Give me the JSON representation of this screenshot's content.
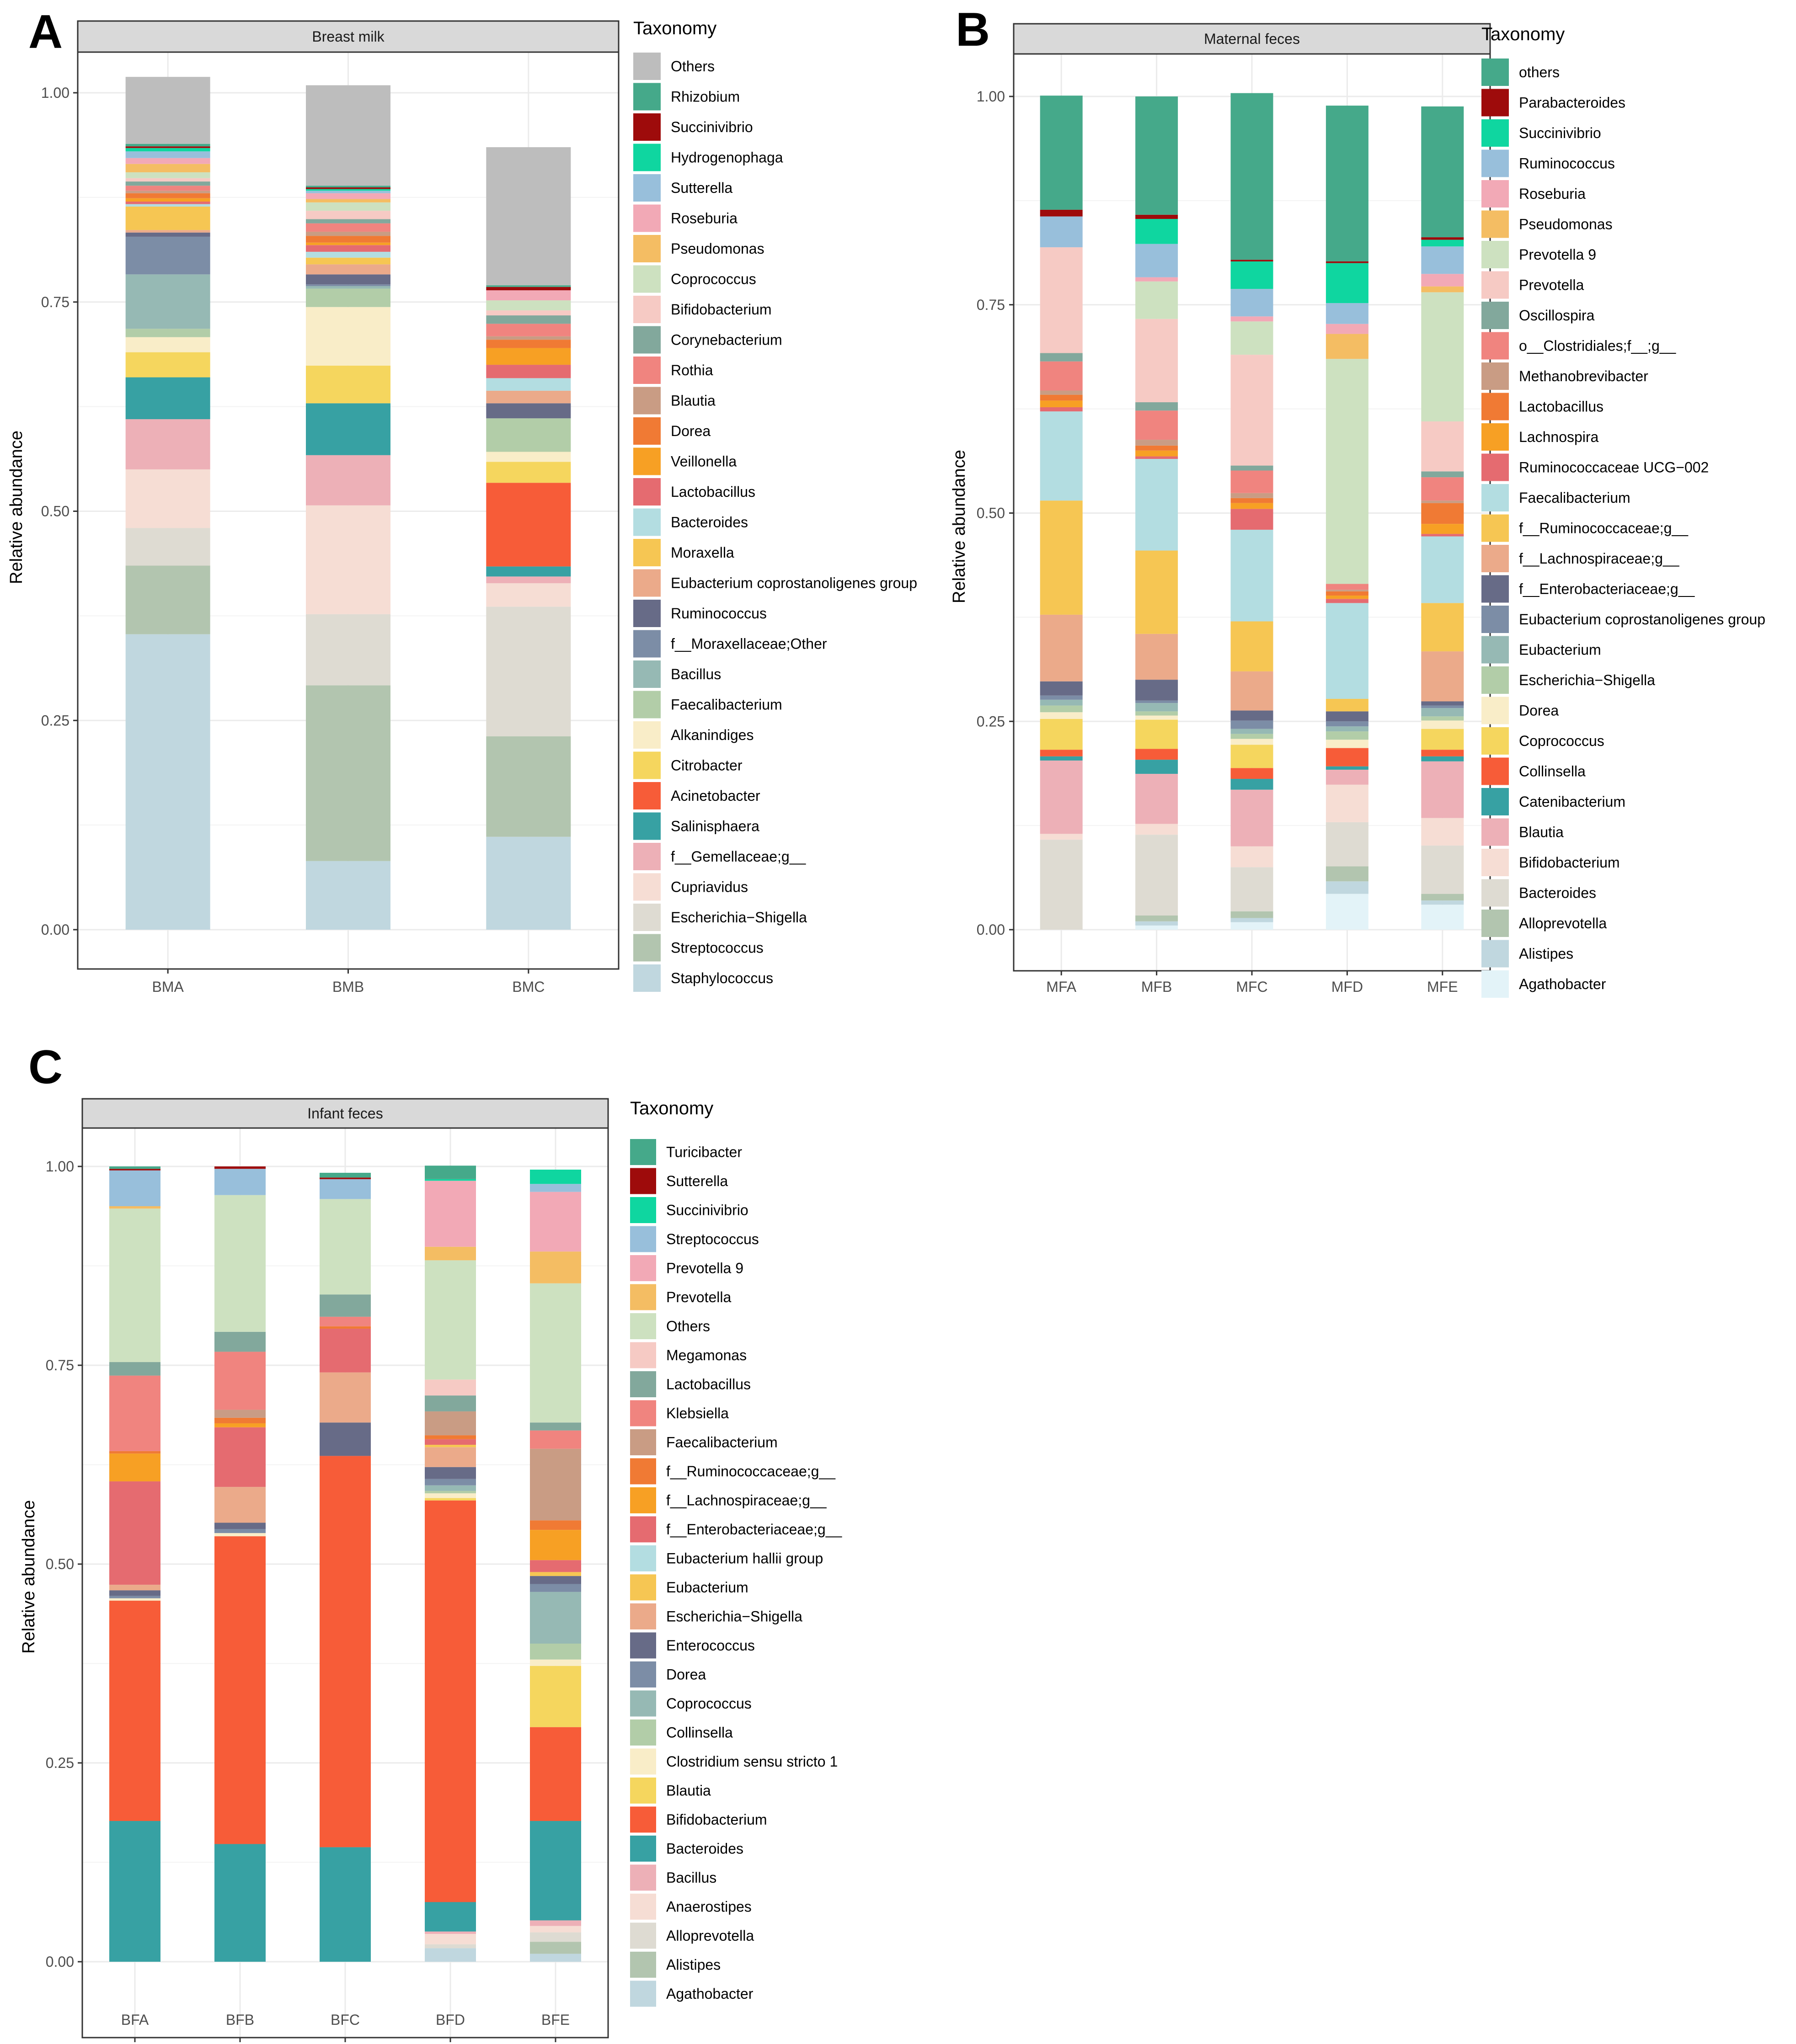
{
  "panels": [
    {
      "letter": "A",
      "strip_title": "Breast milk",
      "ylabel": "Relative abundance",
      "ylim": [
        0,
        1
      ],
      "y_ticks": [
        "0.00",
        "0.25",
        "0.50",
        "0.75",
        "1.00"
      ],
      "legend_title": "Taxonomy",
      "samples": [
        "BMA",
        "BMB",
        "BMC"
      ],
      "taxa": [
        {
          "name": "Others",
          "color": "#BDBDBD"
        },
        {
          "name": "Rhizobium",
          "color": "#45A98A"
        },
        {
          "name": "Succinivibrio",
          "color": "#9E0B0B"
        },
        {
          "name": "Hydrogenophaga",
          "color": "#0FD6A0"
        },
        {
          "name": "Sutterella",
          "color": "#98BFDB"
        },
        {
          "name": "Roseburia",
          "color": "#F2A9B6"
        },
        {
          "name": "Pseudomonas",
          "color": "#F4BD63"
        },
        {
          "name": "Coprococcus",
          "color": "#CDE1C0"
        },
        {
          "name": "Bifidobacterium",
          "color": "#F6CAC4"
        },
        {
          "name": "Corynebacterium",
          "color": "#82A89C"
        },
        {
          "name": "Rothia",
          "color": "#F0847F"
        },
        {
          "name": "Blautia",
          "color": "#C99C84"
        },
        {
          "name": "Dorea",
          "color": "#F07A34"
        },
        {
          "name": "Veillonella",
          "color": "#F7A024"
        },
        {
          "name": "Lactobacillus",
          "color": "#E56B70"
        },
        {
          "name": "Bacteroides",
          "color": "#B3DDE1"
        },
        {
          "name": "Moraxella",
          "color": "#F6C653"
        },
        {
          "name": "Eubacterium coprostanoligenes group",
          "color": "#EBAA8A"
        },
        {
          "name": "Ruminococcus",
          "color": "#676B87"
        },
        {
          "name": "f__Moraxellaceae;Other",
          "color": "#7C8DA6"
        },
        {
          "name": "Bacillus",
          "color": "#96B9B4"
        },
        {
          "name": "Faecalibacterium",
          "color": "#B2CDA8"
        },
        {
          "name": "Alkanindiges",
          "color": "#F9EDC8"
        },
        {
          "name": "Citrobacter",
          "color": "#F5D65E"
        },
        {
          "name": "Acinetobacter",
          "color": "#F75C38"
        },
        {
          "name": "Salinisphaera",
          "color": "#37A1A3"
        },
        {
          "name": "f__Gemellaceae;g__",
          "color": "#EDB0B7"
        },
        {
          "name": "Cupriavidus",
          "color": "#F6DDD4"
        },
        {
          "name": "Escherichia−Shigella",
          "color": "#DEDBD2"
        },
        {
          "name": "Streptococcus",
          "color": "#B2C5AF"
        },
        {
          "name": "Staphylococcus",
          "color": "#C0D7DF"
        }
      ],
      "values": [
        [
          0.08,
          0.12,
          0.165
        ],
        [
          0.003,
          0.002,
          0.002
        ],
        [
          0.002,
          0.002,
          0.004
        ],
        [
          0.004,
          0.002,
          0.0
        ],
        [
          0.008,
          0.003,
          0.0
        ],
        [
          0.007,
          0.007,
          0.012
        ],
        [
          0.01,
          0.004,
          0.0
        ],
        [
          0.007,
          0.01,
          0.012
        ],
        [
          0.004,
          0.01,
          0.006
        ],
        [
          0.005,
          0.005,
          0.01
        ],
        [
          0.006,
          0.01,
          0.015
        ],
        [
          0.003,
          0.005,
          0.004
        ],
        [
          0.006,
          0.008,
          0.01
        ],
        [
          0.004,
          0.003,
          0.02
        ],
        [
          0.003,
          0.008,
          0.016
        ],
        [
          0.003,
          0.007,
          0.015
        ],
        [
          0.028,
          0.008,
          0.0
        ],
        [
          0.003,
          0.012,
          0.015
        ],
        [
          0.005,
          0.012,
          0.018
        ],
        [
          0.045,
          0.002,
          0.0
        ],
        [
          0.065,
          0.003,
          0.0
        ],
        [
          0.01,
          0.022,
          0.04
        ],
        [
          0.018,
          0.07,
          0.012
        ],
        [
          0.03,
          0.045,
          0.025
        ],
        [
          0.0,
          0.0,
          0.1
        ],
        [
          0.05,
          0.062,
          0.012
        ],
        [
          0.06,
          0.06,
          0.008
        ],
        [
          0.07,
          0.13,
          0.028
        ],
        [
          0.045,
          0.085,
          0.155
        ],
        [
          0.082,
          0.21,
          0.12
        ],
        [
          0.353,
          0.082,
          0.111
        ]
      ]
    },
    {
      "letter": "B",
      "strip_title": "Maternal feces",
      "ylabel": "Relative abundance",
      "ylim": [
        0,
        1
      ],
      "y_ticks": [
        "0.00",
        "0.25",
        "0.50",
        "0.75",
        "1.00"
      ],
      "legend_title": "Taxonomy",
      "samples": [
        "MFA",
        "MFB",
        "MFC",
        "MFD",
        "MFE"
      ],
      "taxa": [
        {
          "name": "others",
          "color": "#45A98A"
        },
        {
          "name": "Parabacteroides",
          "color": "#9E0B0B"
        },
        {
          "name": "Succinivibrio",
          "color": "#0FD6A0"
        },
        {
          "name": "Ruminococcus",
          "color": "#98BFDB"
        },
        {
          "name": "Roseburia",
          "color": "#F2A9B6"
        },
        {
          "name": "Pseudomonas",
          "color": "#F4BD63"
        },
        {
          "name": "Prevotella 9",
          "color": "#CDE1C0"
        },
        {
          "name": "Prevotella",
          "color": "#F6CAC4"
        },
        {
          "name": "Oscillospira",
          "color": "#82A89C"
        },
        {
          "name": "o__Clostridiales;f__;g__",
          "color": "#F0847F"
        },
        {
          "name": "Methanobrevibacter",
          "color": "#C99C84"
        },
        {
          "name": "Lactobacillus",
          "color": "#F07A34"
        },
        {
          "name": "Lachnospira",
          "color": "#F7A024"
        },
        {
          "name": "Ruminococcaceae UCG−002",
          "color": "#E56B70"
        },
        {
          "name": "Faecalibacterium",
          "color": "#B3DDE1"
        },
        {
          "name": "f__Ruminococcaceae;g__",
          "color": "#F6C653"
        },
        {
          "name": "f__Lachnospiraceae;g__",
          "color": "#EBAA8A"
        },
        {
          "name": "f__Enterobacteriaceae;g__",
          "color": "#676B87"
        },
        {
          "name": "Eubacterium coprostanoligenes group",
          "color": "#7C8DA6"
        },
        {
          "name": "Eubacterium",
          "color": "#96B9B4"
        },
        {
          "name": "Escherichia−Shigella",
          "color": "#B2CDA8"
        },
        {
          "name": "Dorea",
          "color": "#F9EDC8"
        },
        {
          "name": "Coprococcus",
          "color": "#F5D65E"
        },
        {
          "name": "Collinsella",
          "color": "#F75C38"
        },
        {
          "name": "Catenibacterium",
          "color": "#37A1A3"
        },
        {
          "name": "Blautia",
          "color": "#EDB0B7"
        },
        {
          "name": "Bifidobacterium",
          "color": "#F6DDD4"
        },
        {
          "name": "Bacteroides",
          "color": "#DEDBD2"
        },
        {
          "name": "Alloprevotella",
          "color": "#B2C5AF"
        },
        {
          "name": "Alistipes",
          "color": "#C0D7DF"
        },
        {
          "name": "Agathobacter",
          "color": "#E3F3F8"
        }
      ],
      "values": [
        [
          0.137,
          0.142,
          0.2,
          0.187,
          0.157
        ],
        [
          0.008,
          0.005,
          0.002,
          0.002,
          0.003
        ],
        [
          0.0,
          0.03,
          0.033,
          0.048,
          0.008
        ],
        [
          0.037,
          0.04,
          0.033,
          0.025,
          0.033
        ],
        [
          0.0,
          0.005,
          0.006,
          0.012,
          0.015
        ],
        [
          0.0,
          0.0,
          0.0,
          0.03,
          0.007
        ],
        [
          0.0,
          0.045,
          0.04,
          0.27,
          0.155
        ],
        [
          0.127,
          0.1,
          0.133,
          0.0,
          0.06
        ],
        [
          0.01,
          0.01,
          0.006,
          0.0,
          0.007
        ],
        [
          0.035,
          0.035,
          0.027,
          0.007,
          0.028
        ],
        [
          0.005,
          0.007,
          0.006,
          0.002,
          0.003
        ],
        [
          0.007,
          0.006,
          0.006,
          0.005,
          0.025
        ],
        [
          0.008,
          0.007,
          0.007,
          0.004,
          0.012
        ],
        [
          0.005,
          0.003,
          0.025,
          0.005,
          0.003
        ],
        [
          0.107,
          0.11,
          0.11,
          0.115,
          0.08
        ],
        [
          0.137,
          0.1,
          0.06,
          0.015,
          0.058
        ],
        [
          0.08,
          0.055,
          0.047,
          0.0,
          0.06
        ],
        [
          0.017,
          0.025,
          0.012,
          0.012,
          0.005
        ],
        [
          0.005,
          0.003,
          0.01,
          0.006,
          0.003
        ],
        [
          0.007,
          0.01,
          0.006,
          0.006,
          0.01
        ],
        [
          0.008,
          0.005,
          0.006,
          0.01,
          0.005
        ],
        [
          0.008,
          0.005,
          0.007,
          0.01,
          0.01
        ],
        [
          0.037,
          0.035,
          0.028,
          0.0,
          0.025
        ],
        [
          0.008,
          0.013,
          0.013,
          0.022,
          0.008
        ],
        [
          0.005,
          0.017,
          0.013,
          0.004,
          0.006
        ],
        [
          0.088,
          0.06,
          0.068,
          0.018,
          0.068
        ],
        [
          0.007,
          0.013,
          0.025,
          0.045,
          0.033
        ],
        [
          0.108,
          0.097,
          0.053,
          0.053,
          0.058
        ],
        [
          0.0,
          0.007,
          0.008,
          0.018,
          0.008
        ],
        [
          0.0,
          0.005,
          0.005,
          0.015,
          0.005
        ],
        [
          0.0,
          0.005,
          0.009,
          0.043,
          0.03
        ]
      ]
    },
    {
      "letter": "C",
      "strip_title": "Infant feces",
      "ylabel": "Relative abundance",
      "ylim": [
        0,
        1
      ],
      "y_ticks": [
        "0.00",
        "0.25",
        "0.50",
        "0.75",
        "1.00"
      ],
      "legend_title": "Taxonomy",
      "samples": [
        "BFA",
        "BFB",
        "BFC",
        "BFD",
        "BFE"
      ],
      "taxa": [
        {
          "name": "Turicibacter",
          "color": "#45A98A"
        },
        {
          "name": "Sutterella",
          "color": "#9E0B0B"
        },
        {
          "name": "Succinivibrio",
          "color": "#0FD6A0"
        },
        {
          "name": "Streptococcus",
          "color": "#98BFDB"
        },
        {
          "name": "Prevotella 9",
          "color": "#F2A9B6"
        },
        {
          "name": "Prevotella",
          "color": "#F4BD63"
        },
        {
          "name": "Others",
          "color": "#CDE1C0"
        },
        {
          "name": "Megamonas",
          "color": "#F6CAC4"
        },
        {
          "name": "Lactobacillus",
          "color": "#82A89C"
        },
        {
          "name": "Klebsiella",
          "color": "#F0847F"
        },
        {
          "name": "Faecalibacterium",
          "color": "#C99C84"
        },
        {
          "name": "f__Ruminococcaceae;g__",
          "color": "#F07A34"
        },
        {
          "name": "f__Lachnospiraceae;g__",
          "color": "#F7A024"
        },
        {
          "name": "f__Enterobacteriaceae;g__",
          "color": "#E56B70"
        },
        {
          "name": "Eubacterium hallii group",
          "color": "#B3DDE1"
        },
        {
          "name": "Eubacterium",
          "color": "#F6C653"
        },
        {
          "name": "Escherichia−Shigella",
          "color": "#EBAA8A"
        },
        {
          "name": "Enterococcus",
          "color": "#676B87"
        },
        {
          "name": "Dorea",
          "color": "#7C8DA6"
        },
        {
          "name": "Coprococcus",
          "color": "#96B9B4"
        },
        {
          "name": "Collinsella",
          "color": "#B2CDA8"
        },
        {
          "name": "Clostridium sensu stricto 1",
          "color": "#F9EDC8"
        },
        {
          "name": "Blautia",
          "color": "#F5D65E"
        },
        {
          "name": "Bifidobacterium",
          "color": "#F75C38"
        },
        {
          "name": "Bacteroides",
          "color": "#37A1A3"
        },
        {
          "name": "Bacillus",
          "color": "#EDB0B7"
        },
        {
          "name": "Anaerostipes",
          "color": "#F6DDD4"
        },
        {
          "name": "Alloprevotella",
          "color": "#DEDBD2"
        },
        {
          "name": "Alistipes",
          "color": "#B2C5AF"
        },
        {
          "name": "Agathobacter",
          "color": "#C0D7DF"
        }
      ],
      "values": [
        [
          0.003,
          0.0,
          0.006,
          0.017,
          0.0
        ],
        [
          0.002,
          0.003,
          0.002,
          0.0,
          0.0
        ],
        [
          0.0,
          0.0,
          0.0,
          0.002,
          0.018
        ],
        [
          0.045,
          0.033,
          0.025,
          0.0,
          0.01
        ],
        [
          0.0,
          0.0,
          0.0,
          0.083,
          0.075
        ],
        [
          0.003,
          0.0,
          0.0,
          0.017,
          0.04
        ],
        [
          0.193,
          0.172,
          0.12,
          0.15,
          0.175
        ],
        [
          0.0,
          0.0,
          0.0,
          0.02,
          0.0
        ],
        [
          0.017,
          0.025,
          0.028,
          0.02,
          0.01
        ],
        [
          0.095,
          0.073,
          0.012,
          0.0,
          0.023
        ],
        [
          0.0,
          0.01,
          0.0,
          0.03,
          0.09
        ],
        [
          0.003,
          0.007,
          0.003,
          0.005,
          0.012
        ],
        [
          0.035,
          0.005,
          0.0,
          0.0,
          0.038
        ],
        [
          0.13,
          0.075,
          0.055,
          0.007,
          0.015
        ],
        [
          0.0,
          0.0,
          0.0,
          0.0,
          0.0
        ],
        [
          0.0,
          0.0,
          0.0,
          0.003,
          0.005
        ],
        [
          0.007,
          0.045,
          0.063,
          0.025,
          0.0
        ],
        [
          0.007,
          0.008,
          0.042,
          0.015,
          0.01
        ],
        [
          0.003,
          0.005,
          0.0,
          0.008,
          0.01
        ],
        [
          0.0,
          0.0,
          0.0,
          0.007,
          0.065
        ],
        [
          0.0,
          0.0,
          0.0,
          0.003,
          0.02
        ],
        [
          0.003,
          0.004,
          0.0,
          0.006,
          0.008
        ],
        [
          0.0,
          0.0,
          0.0,
          0.003,
          0.077
        ],
        [
          0.277,
          0.387,
          0.492,
          0.505,
          0.118
        ],
        [
          0.177,
          0.148,
          0.144,
          0.037,
          0.125
        ],
        [
          0.0,
          0.0,
          0.0,
          0.003,
          0.007
        ],
        [
          0.0,
          0.0,
          0.0,
          0.013,
          0.008
        ],
        [
          0.0,
          0.0,
          0.0,
          0.005,
          0.012
        ],
        [
          0.0,
          0.0,
          0.0,
          0.0,
          0.015
        ],
        [
          0.0,
          0.0,
          0.0,
          0.017,
          0.01
        ]
      ]
    }
  ],
  "chart_data": [
    {
      "type": "bar",
      "stacked": true,
      "title": "Breast milk",
      "xlabel": "",
      "ylabel": "Relative abundance",
      "ylim": [
        0,
        1
      ],
      "grid": true,
      "legend": "right",
      "categories": [
        "BMA",
        "BMB",
        "BMC"
      ]
    },
    {
      "type": "bar",
      "stacked": true,
      "title": "Maternal feces",
      "xlabel": "",
      "ylabel": "Relative abundance",
      "ylim": [
        0,
        1
      ],
      "grid": true,
      "legend": "right",
      "categories": [
        "MFA",
        "MFB",
        "MFC",
        "MFD",
        "MFE"
      ]
    },
    {
      "type": "bar",
      "stacked": true,
      "title": "Infant feces",
      "xlabel": "",
      "ylabel": "Relative abundance",
      "ylim": [
        0,
        1
      ],
      "grid": true,
      "legend": "right",
      "categories": [
        "BFA",
        "BFB",
        "BFC",
        "BFD",
        "BFE"
      ]
    }
  ]
}
